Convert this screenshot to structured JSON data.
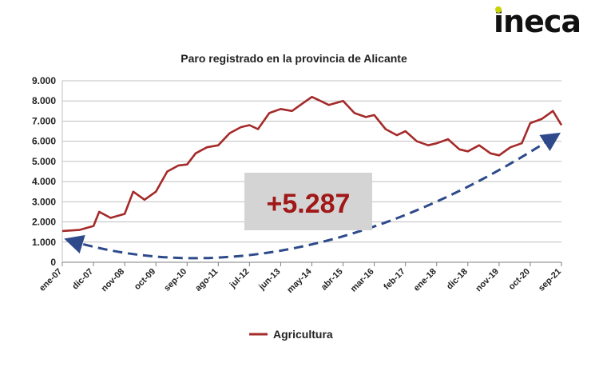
{
  "brand": {
    "logo_text": "ineca",
    "logo_dot_color": "#c8d400"
  },
  "colors": {
    "series": "#a52a2a",
    "arrow": "#2e4a8b",
    "grid": "#bfbfbf",
    "annotation_box": "#d4d4d4",
    "annotation_text": "#a01818"
  },
  "chart_data": {
    "type": "line",
    "title": "Paro registrado en la provincia de Alicante",
    "xlabel": "",
    "ylabel": "",
    "ylim": [
      0,
      9000
    ],
    "yticks": [
      "0",
      "1.000",
      "2.000",
      "3.000",
      "4.000",
      "5.000",
      "6.000",
      "7.000",
      "8.000",
      "9.000"
    ],
    "xtick_labels": [
      "ene-07",
      "dic-07",
      "nov-08",
      "oct-09",
      "sep-10",
      "ago-11",
      "jul-12",
      "jun-13",
      "may-14",
      "abr-15",
      "mar-16",
      "feb-17",
      "ene-18",
      "dic-18",
      "nov-19",
      "oct-20",
      "sep-21"
    ],
    "grid": true,
    "legend_position": "bottom",
    "series": [
      {
        "name": "Agricultura",
        "x": [
          "ene-07",
          "jul-07",
          "dic-07",
          "feb-08",
          "jun-08",
          "nov-08",
          "feb-09",
          "jun-09",
          "oct-09",
          "feb-10",
          "jun-10",
          "sep-10",
          "dic-10",
          "abr-11",
          "ago-11",
          "dic-11",
          "abr-12",
          "jul-12",
          "oct-12",
          "feb-13",
          "jun-13",
          "oct-13",
          "feb-14",
          "may-14",
          "ago-14",
          "nov-14",
          "abr-15",
          "ago-15",
          "dic-15",
          "mar-16",
          "jul-16",
          "nov-16",
          "feb-17",
          "jun-17",
          "oct-17",
          "ene-18",
          "may-18",
          "sep-18",
          "dic-18",
          "abr-19",
          "ago-19",
          "nov-19",
          "mar-20",
          "jul-20",
          "oct-20",
          "feb-21",
          "jun-21",
          "sep-21"
        ],
        "values": [
          1550,
          1600,
          1800,
          2500,
          2200,
          2400,
          3500,
          3100,
          3500,
          4500,
          4800,
          4850,
          5400,
          5700,
          5800,
          6400,
          6700,
          6800,
          6600,
          7400,
          7600,
          7500,
          7900,
          8200,
          8000,
          7800,
          8000,
          7400,
          7200,
          7300,
          6600,
          6300,
          6500,
          6000,
          5800,
          5900,
          6100,
          5600,
          5500,
          5800,
          5400,
          5300,
          5700,
          5900,
          6900,
          7100,
          7500,
          6800
        ]
      }
    ],
    "annotations": [
      {
        "text": "+5.287",
        "connects": [
          "ene-07",
          "sep-21"
        ],
        "style": "dashed curved double-headed arrow"
      }
    ]
  }
}
